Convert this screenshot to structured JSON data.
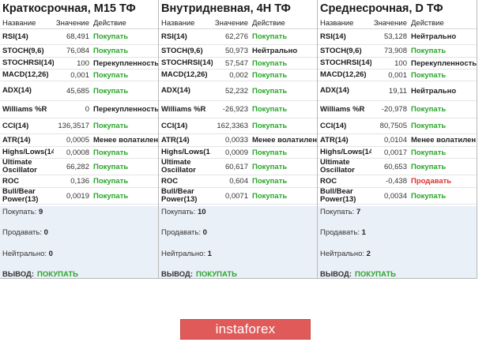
{
  "header": {
    "name": "Название",
    "value": "Значение",
    "action": "Действие"
  },
  "panels": [
    {
      "title": "Краткосрочная, M15 ТФ",
      "rows": [
        {
          "name": "RSI(14)",
          "value": "68,491",
          "action": "Покупать",
          "kind": "buy"
        },
        {
          "name": "STOCH(9,6)",
          "value": "76,084",
          "action": "Покупать",
          "kind": "buy"
        },
        {
          "name": "STOCHRSI(14)",
          "value": "100",
          "action": "Перекупленность",
          "kind": "neutral"
        },
        {
          "name": "MACD(12,26)",
          "value": "0,001",
          "action": "Покупать",
          "kind": "buy"
        },
        {
          "name": "ADX(14)",
          "value": "45,685",
          "action": "Покупать",
          "kind": "buy"
        },
        {
          "name": "Williams %R",
          "value": "0",
          "action": "Перекупленность",
          "kind": "neutral"
        },
        {
          "name": "CCI(14)",
          "value": "136,3517",
          "action": "Покупать",
          "kind": "buy"
        },
        {
          "name": "ATR(14)",
          "value": "0,0005",
          "action": "Менее волатилен",
          "kind": "neutral"
        },
        {
          "name": "Highs/Lows(14)",
          "value": "0,0008",
          "action": "Покупать",
          "kind": "buy"
        },
        {
          "name": "Ultimate Oscillator",
          "value": "66,282",
          "action": "Покупать",
          "kind": "buy"
        },
        {
          "name": "ROC",
          "value": "0,136",
          "action": "Покупать",
          "kind": "buy"
        },
        {
          "name": "Bull/Bear Power(13)",
          "value": "0,0019",
          "action": "Покупать",
          "kind": "buy"
        }
      ],
      "summary": {
        "buy_label": "Покупать:",
        "buy": "9",
        "sell_label": "Продавать:",
        "sell": "0",
        "neutral_label": "Нейтрально:",
        "neutral": "0",
        "verdict_label": "ВЫВОД:",
        "verdict": "ПОКУПАТЬ"
      }
    },
    {
      "title": "Внутридневная, 4H ТФ",
      "rows": [
        {
          "name": "RSI(14)",
          "value": "62,276",
          "action": "Покупать",
          "kind": "buy"
        },
        {
          "name": "STOCH(9,6)",
          "value": "50,973",
          "action": "Нейтрально",
          "kind": "neutral"
        },
        {
          "name": "STOCHRSI(14)",
          "value": "57,547",
          "action": "Покупать",
          "kind": "buy"
        },
        {
          "name": "MACD(12,26)",
          "value": "0,002",
          "action": "Покупать",
          "kind": "buy"
        },
        {
          "name": "ADX(14)",
          "value": "52,232",
          "action": "Покупать",
          "kind": "buy"
        },
        {
          "name": "Williams %R",
          "value": "-26,923",
          "action": "Покупать",
          "kind": "buy"
        },
        {
          "name": "CCI(14)",
          "value": "162,3363",
          "action": "Покупать",
          "kind": "buy"
        },
        {
          "name": "ATR(14)",
          "value": "0,0033",
          "action": "Менее волатилен",
          "kind": "neutral"
        },
        {
          "name": "Highs/Lows(1",
          "value": "0,0009",
          "action": "Покупать",
          "kind": "buy"
        },
        {
          "name": "Ultimate Oscillator",
          "value": "60,617",
          "action": "Покупать",
          "kind": "buy"
        },
        {
          "name": "ROC",
          "value": "0,604",
          "action": "Покупать",
          "kind": "buy"
        },
        {
          "name": "Bull/Bear Power(13)",
          "value": "0,0071",
          "action": "Покупать",
          "kind": "buy"
        }
      ],
      "summary": {
        "buy_label": "Покупать:",
        "buy": "10",
        "sell_label": "Продавать:",
        "sell": "0",
        "neutral_label": "Нейтрально:",
        "neutral": "1",
        "verdict_label": "ВЫВОД:",
        "verdict": "ПОКУПАТЬ"
      }
    },
    {
      "title": "Среднесрочная, D ТФ",
      "rows": [
        {
          "name": "RSI(14)",
          "value": "53,128",
          "action": "Нейтрально",
          "kind": "neutral"
        },
        {
          "name": "STOCH(9,6)",
          "value": "73,908",
          "action": "Покупать",
          "kind": "buy"
        },
        {
          "name": "STOCHRSI(14)",
          "value": "100",
          "action": "Перекупленность",
          "kind": "neutral"
        },
        {
          "name": "MACD(12,26)",
          "value": "0,001",
          "action": "Покупать",
          "kind": "buy"
        },
        {
          "name": "ADX(14)",
          "value": "19,11",
          "action": "Нейтрально",
          "kind": "neutral"
        },
        {
          "name": "Williams %R",
          "value": "-20,978",
          "action": "Покупать",
          "kind": "buy"
        },
        {
          "name": "CCI(14)",
          "value": "80,7505",
          "action": "Покупать",
          "kind": "buy"
        },
        {
          "name": "ATR(14)",
          "value": "0,0104",
          "action": "Менее волатилен",
          "kind": "neutral"
        },
        {
          "name": "Highs/Lows(14)",
          "value": "0,0017",
          "action": "Покупать",
          "kind": "buy"
        },
        {
          "name": "Ultimate Oscillator",
          "value": "60,653",
          "action": "Покупать",
          "kind": "buy"
        },
        {
          "name": "ROC",
          "value": "-0,438",
          "action": "Продавать",
          "kind": "sell"
        },
        {
          "name": "Bull/Bear Power(13)",
          "value": "0,0034",
          "action": "Покупать",
          "kind": "buy"
        }
      ],
      "summary": {
        "buy_label": "Покупать:",
        "buy": "7",
        "sell_label": "Продавать:",
        "sell": "1",
        "neutral_label": "Нейтрально:",
        "neutral": "2",
        "verdict_label": "ВЫВОД:",
        "verdict": "ПОКУПАТЬ"
      }
    }
  ],
  "brand": {
    "logo_text": "instaforex"
  },
  "colors": {
    "buy": "#2aa52a",
    "sell": "#e03030",
    "summary_bg": "#eaf0f8",
    "logo_bg": "#e05a5a"
  }
}
